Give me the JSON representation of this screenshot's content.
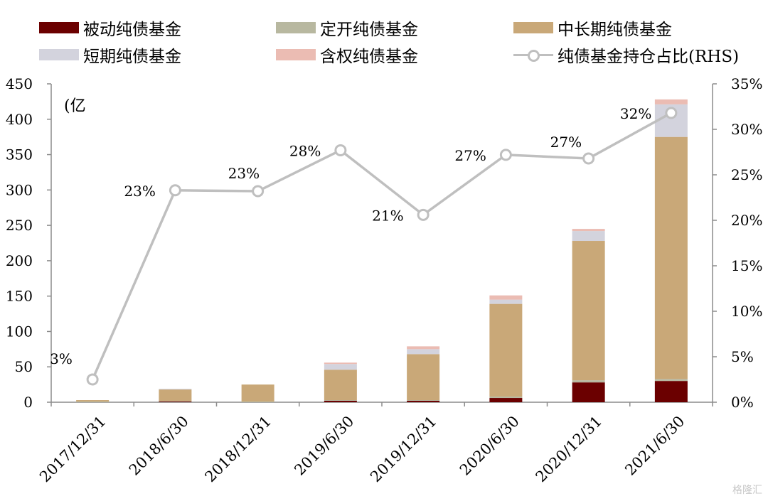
{
  "chart_data": {
    "type": "bar",
    "categories": [
      "2017/12/31",
      "2018/6/30",
      "2018/12/31",
      "2019/6/30",
      "2019/12/31",
      "2020/6/30",
      "2020/12/31",
      "2021/6/30"
    ],
    "series": [
      {
        "name": "被动纯债基金",
        "color": "#6b0000",
        "values": [
          0,
          1,
          0,
          2,
          2,
          6,
          28,
          30
        ]
      },
      {
        "name": "定开纯债基金",
        "color": "#b8b8a0",
        "values": [
          1,
          1,
          1,
          1,
          1,
          2,
          3,
          3
        ]
      },
      {
        "name": "中长期纯债基金",
        "color": "#c9a878",
        "values": [
          2,
          16,
          24,
          43,
          65,
          131,
          197,
          342
        ]
      },
      {
        "name": "短期纯债基金",
        "color": "#d3d3dd",
        "values": [
          0,
          1,
          0,
          8,
          7,
          6,
          14,
          46
        ]
      },
      {
        "name": "含权纯债基金",
        "color": "#ebbcb3",
        "values": [
          0,
          0,
          0,
          2,
          4,
          6,
          3,
          7
        ]
      }
    ],
    "line_series": {
      "name": "纯债基金持仓占比(RHS)",
      "color": "#bfbfbf",
      "values": [
        2.5,
        23.3,
        23.2,
        27.7,
        20.6,
        27.2,
        26.8,
        31.8
      ],
      "labels": [
        "3%",
        "23%",
        "23%",
        "28%",
        "21%",
        "27%",
        "27%",
        "32%"
      ]
    },
    "y_left": {
      "min": 0,
      "max": 450,
      "ticks": [
        0,
        50,
        100,
        150,
        200,
        250,
        300,
        350,
        400,
        450
      ],
      "unit_label": "(亿"
    },
    "y_right": {
      "min": 0,
      "max": 35,
      "ticks": [
        "0%",
        "5%",
        "10%",
        "15%",
        "20%",
        "25%",
        "30%",
        "35%"
      ]
    },
    "legend": "top",
    "grid": false
  },
  "watermark": "格隆汇"
}
